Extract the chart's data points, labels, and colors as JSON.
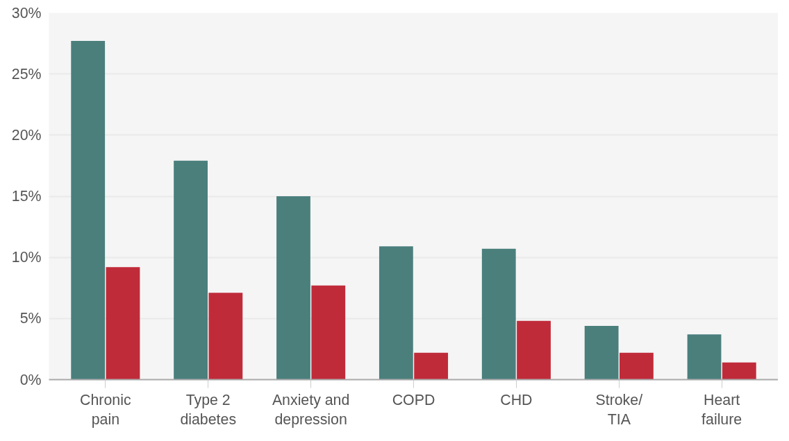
{
  "chart_data": {
    "type": "bar",
    "categories": [
      "Chronic\npain",
      "Type 2\ndiabetes",
      "Anxiety and\ndepression",
      "COPD",
      "CHD",
      "Stroke/\nTIA",
      "Heart\nfailure"
    ],
    "series": [
      {
        "color": "#4a7f7c",
        "values": [
          27.7,
          17.9,
          15.0,
          10.9,
          10.7,
          4.4,
          3.7
        ]
      },
      {
        "color": "#c02b3a",
        "values": [
          9.2,
          7.1,
          7.7,
          2.2,
          4.8,
          2.2,
          1.4
        ]
      }
    ],
    "ylim": [
      0,
      30
    ],
    "yticks": [
      {
        "value": 0,
        "label": "0%"
      },
      {
        "value": 5,
        "label": "5%"
      },
      {
        "value": 10,
        "label": "10%"
      },
      {
        "value": 15,
        "label": "15%"
      },
      {
        "value": 20,
        "label": "20%"
      },
      {
        "value": 25,
        "label": "25%"
      },
      {
        "value": 30,
        "label": "30%"
      }
    ],
    "grid": "y"
  }
}
